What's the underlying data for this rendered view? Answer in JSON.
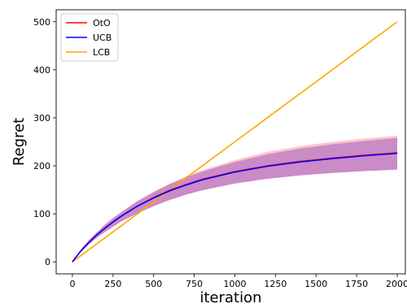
{
  "chart_data": {
    "type": "line",
    "title": "",
    "xlabel": "iteration",
    "ylabel": "Regret",
    "xlim": [
      -100,
      2050
    ],
    "ylim": [
      -25,
      525
    ],
    "xticks": [
      0,
      250,
      500,
      750,
      1000,
      1250,
      1500,
      1750,
      2000
    ],
    "yticks": [
      0,
      100,
      200,
      300,
      400,
      500
    ],
    "grid": false,
    "legend_position": "top-left",
    "x": [
      0,
      50,
      100,
      150,
      200,
      250,
      300,
      400,
      500,
      600,
      700,
      800,
      1000,
      1200,
      1400,
      1600,
      1800,
      2000
    ],
    "series": [
      {
        "name": "OtO",
        "color": "#ff0000",
        "values": [
          0,
          22,
          40,
          56,
          70,
          83,
          95,
          116,
          134,
          149,
          161,
          172,
          188,
          200,
          209,
          216,
          222,
          227
        ],
        "band_upper": [
          0,
          25,
          45,
          62,
          78,
          92,
          104,
          127,
          146,
          163,
          178,
          191,
          212,
          229,
          241,
          250,
          257,
          263
        ],
        "band_lower": [
          0,
          20,
          36,
          50,
          62,
          73,
          84,
          101,
          116,
          129,
          140,
          149,
          163,
          173,
          180,
          185,
          189,
          192
        ]
      },
      {
        "name": "UCB",
        "color": "#0000ff",
        "values": [
          0,
          22,
          40,
          56,
          70,
          83,
          95,
          116,
          133,
          148,
          160,
          171,
          187,
          199,
          208,
          215,
          221,
          226
        ],
        "band_upper": [
          0,
          25,
          44,
          61,
          77,
          91,
          103,
          126,
          145,
          162,
          176,
          188,
          208,
          224,
          236,
          245,
          252,
          258
        ],
        "band_lower": [
          0,
          20,
          36,
          50,
          62,
          73,
          84,
          101,
          116,
          129,
          140,
          149,
          163,
          173,
          180,
          185,
          189,
          192
        ]
      },
      {
        "name": "LCB",
        "color": "#ffa500",
        "values": [
          0,
          12.5,
          25,
          37.5,
          50,
          62.5,
          75,
          100,
          125,
          150,
          175,
          200,
          250,
          300,
          350,
          400,
          450,
          500
        ]
      }
    ]
  }
}
